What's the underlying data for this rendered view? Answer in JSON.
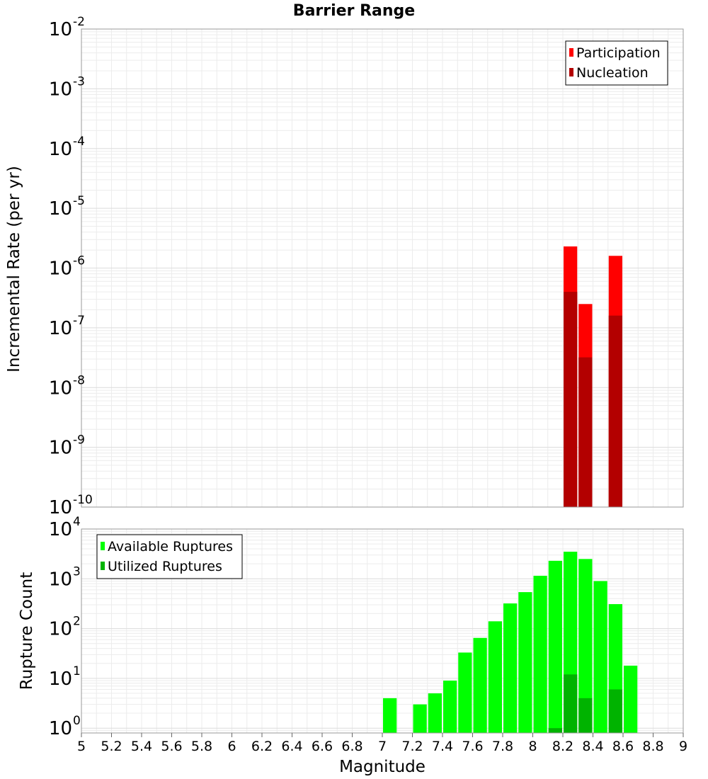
{
  "chart_data": [
    {
      "type": "bar",
      "title": "Barrier Range",
      "xlabel": "",
      "ylabel": "Incremental Rate (per yr)",
      "yscale": "log",
      "xlim": [
        5,
        9
      ],
      "ylim": [
        1e-10,
        0.01
      ],
      "bar_width": 0.1,
      "grid": true,
      "legend_position": "top-right",
      "y_ticks": [
        {
          "base": "10",
          "exp": "-10",
          "value": 1e-10
        },
        {
          "base": "10",
          "exp": "-9",
          "value": 1e-09
        },
        {
          "base": "10",
          "exp": "-8",
          "value": 1e-08
        },
        {
          "base": "10",
          "exp": "-7",
          "value": 1e-07
        },
        {
          "base": "10",
          "exp": "-6",
          "value": 1e-06
        },
        {
          "base": "10",
          "exp": "-5",
          "value": 1e-05
        },
        {
          "base": "10",
          "exp": "-4",
          "value": 0.0001
        },
        {
          "base": "10",
          "exp": "-3",
          "value": 0.001
        },
        {
          "base": "10",
          "exp": "-2",
          "value": 0.01
        }
      ],
      "series": [
        {
          "name": "Participation",
          "color": "#ff0000",
          "x": [
            8.25,
            8.35,
            8.55
          ],
          "values": [
            2.3e-06,
            2.5e-07,
            1.6e-06
          ]
        },
        {
          "name": "Nucleation",
          "color": "#b30000",
          "x": [
            8.25,
            8.35,
            8.55
          ],
          "values": [
            4e-07,
            3.2e-08,
            1.6e-07
          ]
        }
      ]
    },
    {
      "type": "bar",
      "title": "",
      "xlabel": "Magnitude",
      "ylabel": "Rupture Count",
      "yscale": "log",
      "xlim": [
        5,
        9
      ],
      "ylim": [
        0.8,
        10000
      ],
      "bar_width": 0.1,
      "grid": true,
      "legend_position": "top-left",
      "x_ticks": [
        "5",
        "5.2",
        "5.4",
        "5.6",
        "5.8",
        "6",
        "6.2",
        "6.4",
        "6.6",
        "6.8",
        "7",
        "7.2",
        "7.4",
        "7.6",
        "7.8",
        "8",
        "8.2",
        "8.4",
        "8.6",
        "8.8",
        "9"
      ],
      "y_ticks": [
        {
          "base": "10",
          "exp": "0",
          "value": 1
        },
        {
          "base": "10",
          "exp": "1",
          "value": 10
        },
        {
          "base": "10",
          "exp": "2",
          "value": 100
        },
        {
          "base": "10",
          "exp": "3",
          "value": 1000
        },
        {
          "base": "10",
          "exp": "4",
          "value": 10000
        }
      ],
      "series": [
        {
          "name": "Available Ruptures",
          "color": "#00ff00",
          "x": [
            7.05,
            7.25,
            7.35,
            7.45,
            7.55,
            7.65,
            7.75,
            7.85,
            7.95,
            8.05,
            8.15,
            8.25,
            8.35,
            8.45,
            8.55,
            8.65
          ],
          "values": [
            4,
            3,
            5,
            9,
            33,
            65,
            140,
            320,
            540,
            1150,
            2300,
            3500,
            2500,
            900,
            310,
            18
          ]
        },
        {
          "name": "Utilized Ruptures",
          "color": "#00b300",
          "x": [
            8.15,
            8.25,
            8.35,
            8.55
          ],
          "values": [
            1,
            12,
            4,
            6
          ]
        }
      ]
    }
  ]
}
